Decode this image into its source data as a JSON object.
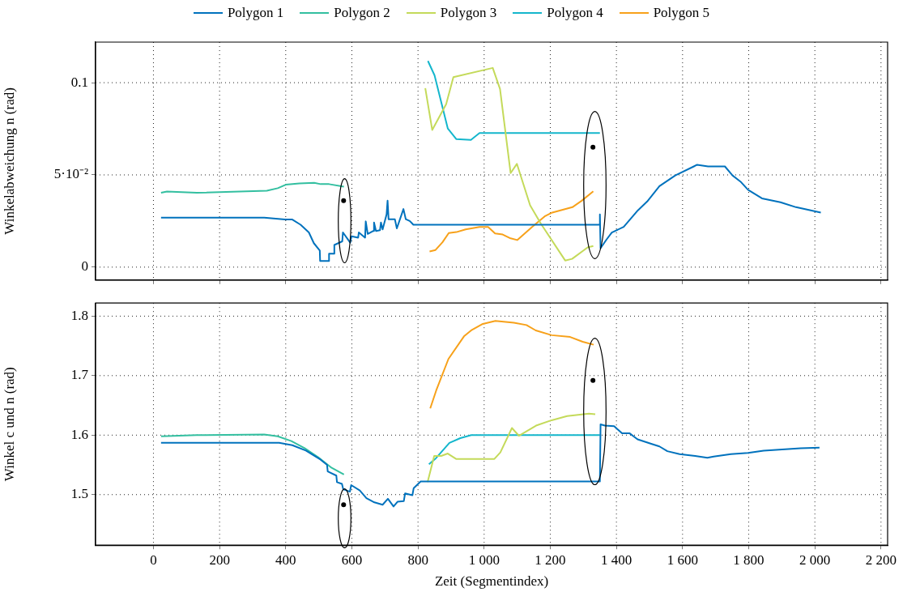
{
  "chart_data": [
    {
      "type": "line",
      "ylabel": "Winkelabweichung n (rad)",
      "legend": "top",
      "grid": true,
      "marker": "none",
      "line_style": "solid",
      "tick_labels": "y",
      "xlim": [
        -175,
        2220
      ],
      "xticks": [
        0,
        200,
        400,
        600,
        800,
        1000,
        1200,
        1400,
        1600,
        1800,
        2000,
        2200
      ],
      "ylim": [
        -0.007,
        0.122
      ],
      "yticks": [
        0,
        {
          "value": 0.05,
          "label": "5·10⁻²"
        },
        0.1
      ],
      "series": [
        {
          "name": "Polygon 1",
          "color": "#0072bd",
          "x": [
            23,
            335,
            398,
            420,
            445,
            470,
            485,
            503,
            504,
            531,
            531,
            547,
            547,
            571,
            573,
            595,
            599,
            619,
            621,
            640,
            642,
            648,
            665,
            667,
            673,
            685,
            688,
            693,
            705,
            708,
            711,
            730,
            736,
            756,
            763,
            775,
            786,
            1350,
            1350,
            1352,
            1371,
            1386,
            1422,
            1465,
            1493,
            1530,
            1578,
            1634,
            1644,
            1677,
            1728,
            1751,
            1775,
            1798,
            1840,
            1896,
            1943,
            2018
          ],
          "values": [
            0.0268,
            0.0268,
            0.0258,
            0.0258,
            0.023,
            0.0188,
            0.013,
            0.009,
            0.0033,
            0.0033,
            0.0073,
            0.0073,
            0.012,
            0.014,
            0.0188,
            0.0133,
            0.0167,
            0.016,
            0.0188,
            0.016,
            0.0248,
            0.018,
            0.0196,
            0.0242,
            0.0196,
            0.02,
            0.0242,
            0.0205,
            0.0286,
            0.036,
            0.026,
            0.026,
            0.021,
            0.0315,
            0.026,
            0.025,
            0.023,
            0.023,
            0.0286,
            0.0103,
            0.0152,
            0.0188,
            0.0218,
            0.0308,
            0.0356,
            0.0439,
            0.0497,
            0.0546,
            0.0555,
            0.0546,
            0.0546,
            0.0497,
            0.0464,
            0.0419,
            0.0373,
            0.0352,
            0.0325,
            0.0296
          ]
        },
        {
          "name": "Polygon 2",
          "color": "#33bfa0",
          "x": [
            23,
            41,
            131,
            343,
            376,
            400,
            441,
            486,
            506,
            531,
            576
          ],
          "values": [
            0.0403,
            0.041,
            0.0403,
            0.0414,
            0.0428,
            0.0447,
            0.0454,
            0.0457,
            0.045,
            0.045,
            0.0436
          ]
        },
        {
          "name": "Polygon 3",
          "color": "#c4da5a",
          "x": [
            822,
            843,
            885,
            907,
            1026,
            1048,
            1080,
            1099,
            1139,
            1172,
            1245,
            1266,
            1313,
            1330
          ],
          "values": [
            0.097,
            0.0744,
            0.0883,
            0.103,
            0.108,
            0.0966,
            0.051,
            0.056,
            0.0335,
            0.0234,
            0.0036,
            0.0045,
            0.0107,
            0.0115
          ]
        },
        {
          "name": "Polygon 4",
          "color": "#14b6cc",
          "x": [
            830,
            850,
            890,
            916,
            960,
            986,
            1350
          ],
          "values": [
            0.1118,
            0.104,
            0.0752,
            0.0694,
            0.069,
            0.0727,
            0.0727
          ]
        },
        {
          "name": "Polygon 5",
          "color": "#f7a11a",
          "x": [
            835,
            853,
            874,
            893,
            916,
            944,
            986,
            1012,
            1033,
            1056,
            1080,
            1100,
            1145,
            1183,
            1206,
            1267,
            1295,
            1330
          ],
          "values": [
            0.0085,
            0.0093,
            0.0135,
            0.0185,
            0.019,
            0.0205,
            0.0218,
            0.0218,
            0.0183,
            0.0177,
            0.0156,
            0.0147,
            0.0218,
            0.0275,
            0.0296,
            0.0325,
            0.036,
            0.0411
          ]
        },
        {
          "type": "scatter",
          "marker": "circle",
          "color": "#000000",
          "x": [
            575,
            1329
          ],
          "values": [
            0.036,
            0.065
          ]
        }
      ]
    },
    {
      "type": "line",
      "xlabel": "Zeit (Segmentindex)",
      "ylabel": "Winkel c und n (rad)",
      "grid": true,
      "marker": "none",
      "line_style": "solid",
      "xlim": [
        -175,
        2220
      ],
      "xticks": [
        0,
        200,
        400,
        600,
        800,
        {
          "value": 1000,
          "label": "1 000"
        },
        {
          "value": 1200,
          "label": "1 200"
        },
        {
          "value": 1400,
          "label": "1 400"
        },
        {
          "value": 1600,
          "label": "1 600"
        },
        {
          "value": 1800,
          "label": "1 800"
        },
        {
          "value": 2000,
          "label": "2 000"
        },
        {
          "value": 2200,
          "label": "2 200"
        }
      ],
      "ylim": [
        1.415,
        1.822
      ],
      "yticks": [
        1.5,
        1.6,
        1.7,
        1.8
      ],
      "series": [
        {
          "color": "#0072bd",
          "x": [
            23,
            380,
            420,
            461,
            505,
            525,
            527,
            553,
            555,
            570,
            574,
            594,
            598,
            624,
            644,
            668,
            693,
            709,
            726,
            738,
            757,
            761,
            783,
            787,
            808,
            1350,
            1352,
            1365,
            1393,
            1417,
            1440,
            1464,
            1507,
            1530,
            1554,
            1591,
            1638,
            1675,
            1694,
            1746,
            1798,
            1845,
            1901,
            1957,
            2014
          ],
          "values": [
            1.587,
            1.587,
            1.583,
            1.574,
            1.559,
            1.55,
            1.539,
            1.532,
            1.521,
            1.518,
            1.509,
            1.505,
            1.516,
            1.507,
            1.494,
            1.487,
            1.483,
            1.493,
            1.48,
            1.488,
            1.489,
            1.502,
            1.499,
            1.511,
            1.522,
            1.522,
            1.618,
            1.616,
            1.615,
            1.603,
            1.603,
            1.593,
            1.585,
            1.581,
            1.573,
            1.568,
            1.565,
            1.562,
            1.564,
            1.568,
            1.57,
            1.574,
            1.576,
            1.578,
            1.579
          ]
        },
        {
          "color": "#33bfa0",
          "x": [
            23,
            131,
            335,
            376,
            417,
            457,
            498,
            539,
            576
          ],
          "values": [
            1.598,
            1.6,
            1.601,
            1.598,
            1.59,
            1.578,
            1.563,
            1.545,
            1.534
          ]
        },
        {
          "color": "#c4da5a",
          "x": [
            829,
            849,
            870,
            890,
            915,
            1031,
            1049,
            1084,
            1105,
            1157,
            1204,
            1251,
            1317,
            1336
          ],
          "values": [
            1.521,
            1.565,
            1.565,
            1.569,
            1.56,
            1.56,
            1.571,
            1.612,
            1.599,
            1.616,
            1.625,
            1.632,
            1.636,
            1.635
          ]
        },
        {
          "color": "#14b6cc",
          "x": [
            833,
            854,
            895,
            928,
            961,
            1350
          ],
          "values": [
            1.551,
            1.561,
            1.587,
            1.595,
            1.6,
            1.6
          ]
        },
        {
          "color": "#f7a11a",
          "x": [
            837,
            855,
            892,
            939,
            963,
            996,
            1034,
            1090,
            1128,
            1156,
            1204,
            1260,
            1298,
            1331
          ],
          "values": [
            1.645,
            1.675,
            1.728,
            1.766,
            1.777,
            1.787,
            1.792,
            1.789,
            1.785,
            1.776,
            1.768,
            1.765,
            1.757,
            1.752
          ]
        },
        {
          "type": "scatter",
          "marker": "circle",
          "color": "#000000",
          "x": [
            575,
            1329
          ],
          "values": [
            1.483,
            1.692
          ]
        }
      ]
    }
  ]
}
